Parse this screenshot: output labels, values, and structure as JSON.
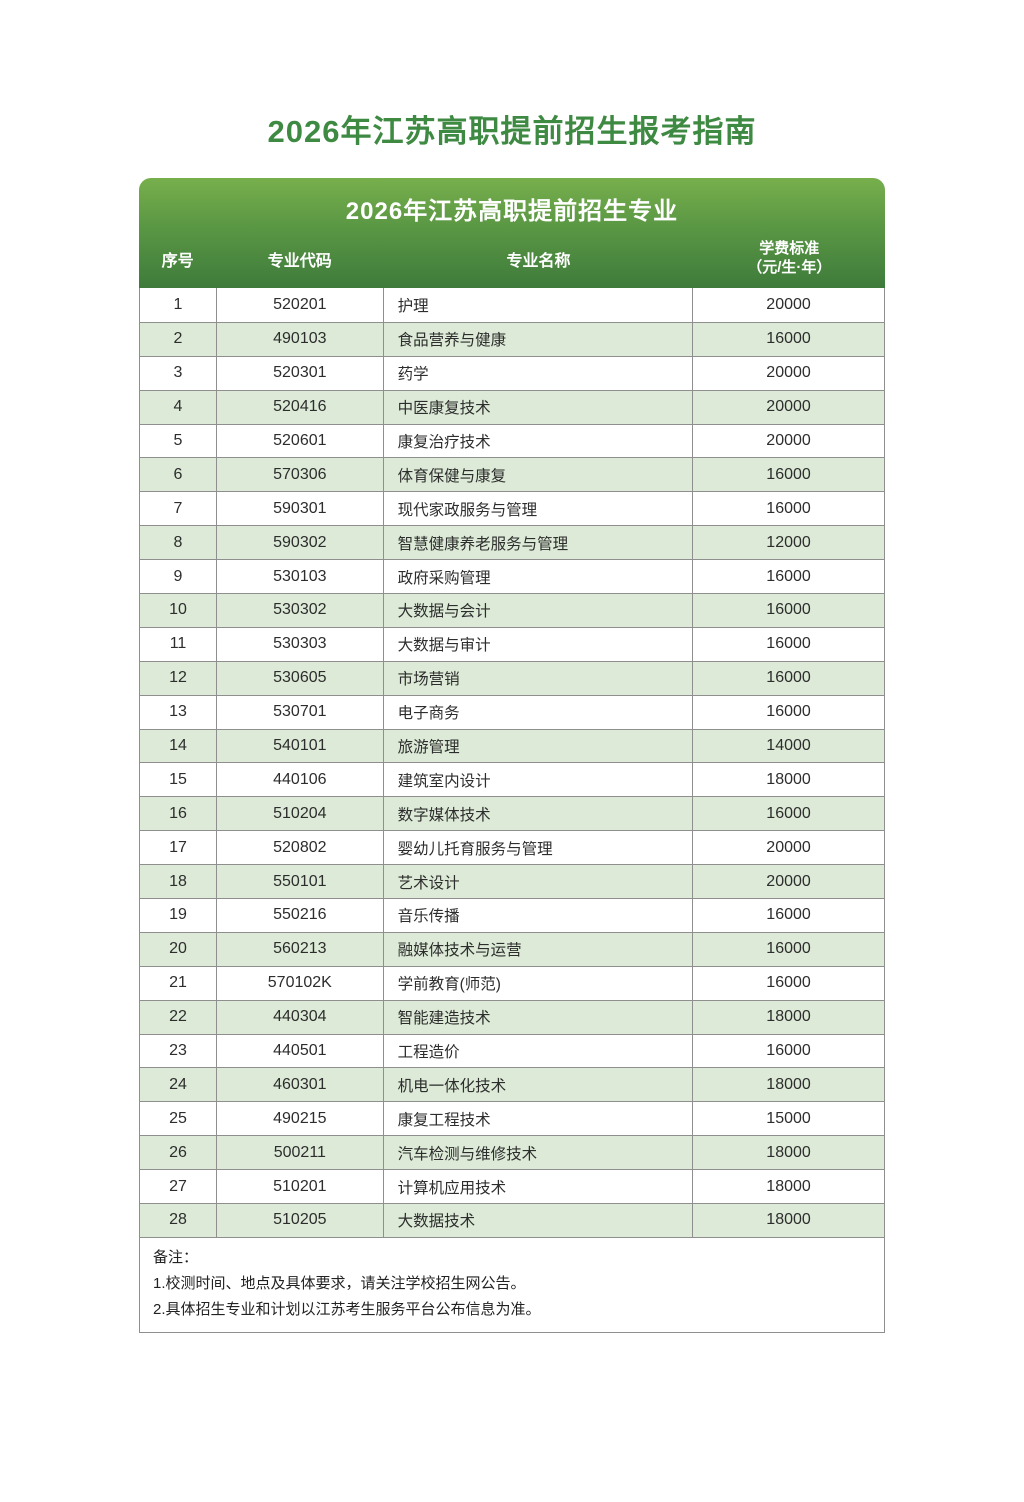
{
  "page": {
    "main_title": "2026年江苏高职提前招生报考指南"
  },
  "card": {
    "title": "2026年江苏高职提前招生专业"
  },
  "table": {
    "headers": {
      "no": "序号",
      "code": "专业代码",
      "name": "专业名称",
      "fee_line1": "学费标准",
      "fee_line2": "（元/生·年）"
    },
    "rows": [
      {
        "no": "1",
        "code": "520201",
        "name": "护理",
        "fee": "20000"
      },
      {
        "no": "2",
        "code": "490103",
        "name": "食品营养与健康",
        "fee": "16000"
      },
      {
        "no": "3",
        "code": "520301",
        "name": "药学",
        "fee": "20000"
      },
      {
        "no": "4",
        "code": "520416",
        "name": "中医康复技术",
        "fee": "20000"
      },
      {
        "no": "5",
        "code": "520601",
        "name": "康复治疗技术",
        "fee": "20000"
      },
      {
        "no": "6",
        "code": "570306",
        "name": "体育保健与康复",
        "fee": "16000"
      },
      {
        "no": "7",
        "code": "590301",
        "name": "现代家政服务与管理",
        "fee": "16000"
      },
      {
        "no": "8",
        "code": "590302",
        "name": "智慧健康养老服务与管理",
        "fee": "12000"
      },
      {
        "no": "9",
        "code": "530103",
        "name": "政府采购管理",
        "fee": "16000"
      },
      {
        "no": "10",
        "code": "530302",
        "name": "大数据与会计",
        "fee": "16000"
      },
      {
        "no": "11",
        "code": "530303",
        "name": "大数据与审计",
        "fee": "16000"
      },
      {
        "no": "12",
        "code": "530605",
        "name": "市场营销",
        "fee": "16000"
      },
      {
        "no": "13",
        "code": "530701",
        "name": "电子商务",
        "fee": "16000"
      },
      {
        "no": "14",
        "code": "540101",
        "name": "旅游管理",
        "fee": "14000"
      },
      {
        "no": "15",
        "code": "440106",
        "name": "建筑室内设计",
        "fee": "18000"
      },
      {
        "no": "16",
        "code": "510204",
        "name": "数字媒体技术",
        "fee": "16000"
      },
      {
        "no": "17",
        "code": "520802",
        "name": "婴幼儿托育服务与管理",
        "fee": "20000"
      },
      {
        "no": "18",
        "code": "550101",
        "name": "艺术设计",
        "fee": "20000"
      },
      {
        "no": "19",
        "code": "550216",
        "name": "音乐传播",
        "fee": "16000"
      },
      {
        "no": "20",
        "code": "560213",
        "name": "融媒体技术与运营",
        "fee": "16000"
      },
      {
        "no": "21",
        "code": "570102K",
        "name": "学前教育(师范)",
        "fee": "16000"
      },
      {
        "no": "22",
        "code": "440304",
        "name": "智能建造技术",
        "fee": "18000"
      },
      {
        "no": "23",
        "code": "440501",
        "name": "工程造价",
        "fee": "16000"
      },
      {
        "no": "24",
        "code": "460301",
        "name": "机电一体化技术",
        "fee": "18000"
      },
      {
        "no": "25",
        "code": "490215",
        "name": "康复工程技术",
        "fee": "15000"
      },
      {
        "no": "26",
        "code": "500211",
        "name": "汽车检测与维修技术",
        "fee": "18000"
      },
      {
        "no": "27",
        "code": "510201",
        "name": "计算机应用技术",
        "fee": "18000"
      },
      {
        "no": "28",
        "code": "510205",
        "name": "大数据技术",
        "fee": "18000"
      }
    ]
  },
  "notes": {
    "label": "备注：",
    "items": [
      "1.校测时间、地点及具体要求，请关注学校招生网公告。",
      "2.具体招生专业和计划以江苏考生服务平台公布信息为准。"
    ]
  },
  "colors": {
    "title_green": "#3f8a43",
    "header_gradient_top": "#77af4c",
    "header_gradient_bottom": "#3e7b3b",
    "row_alt_green": "#dcead7",
    "border_gray": "#8f8f8f"
  }
}
